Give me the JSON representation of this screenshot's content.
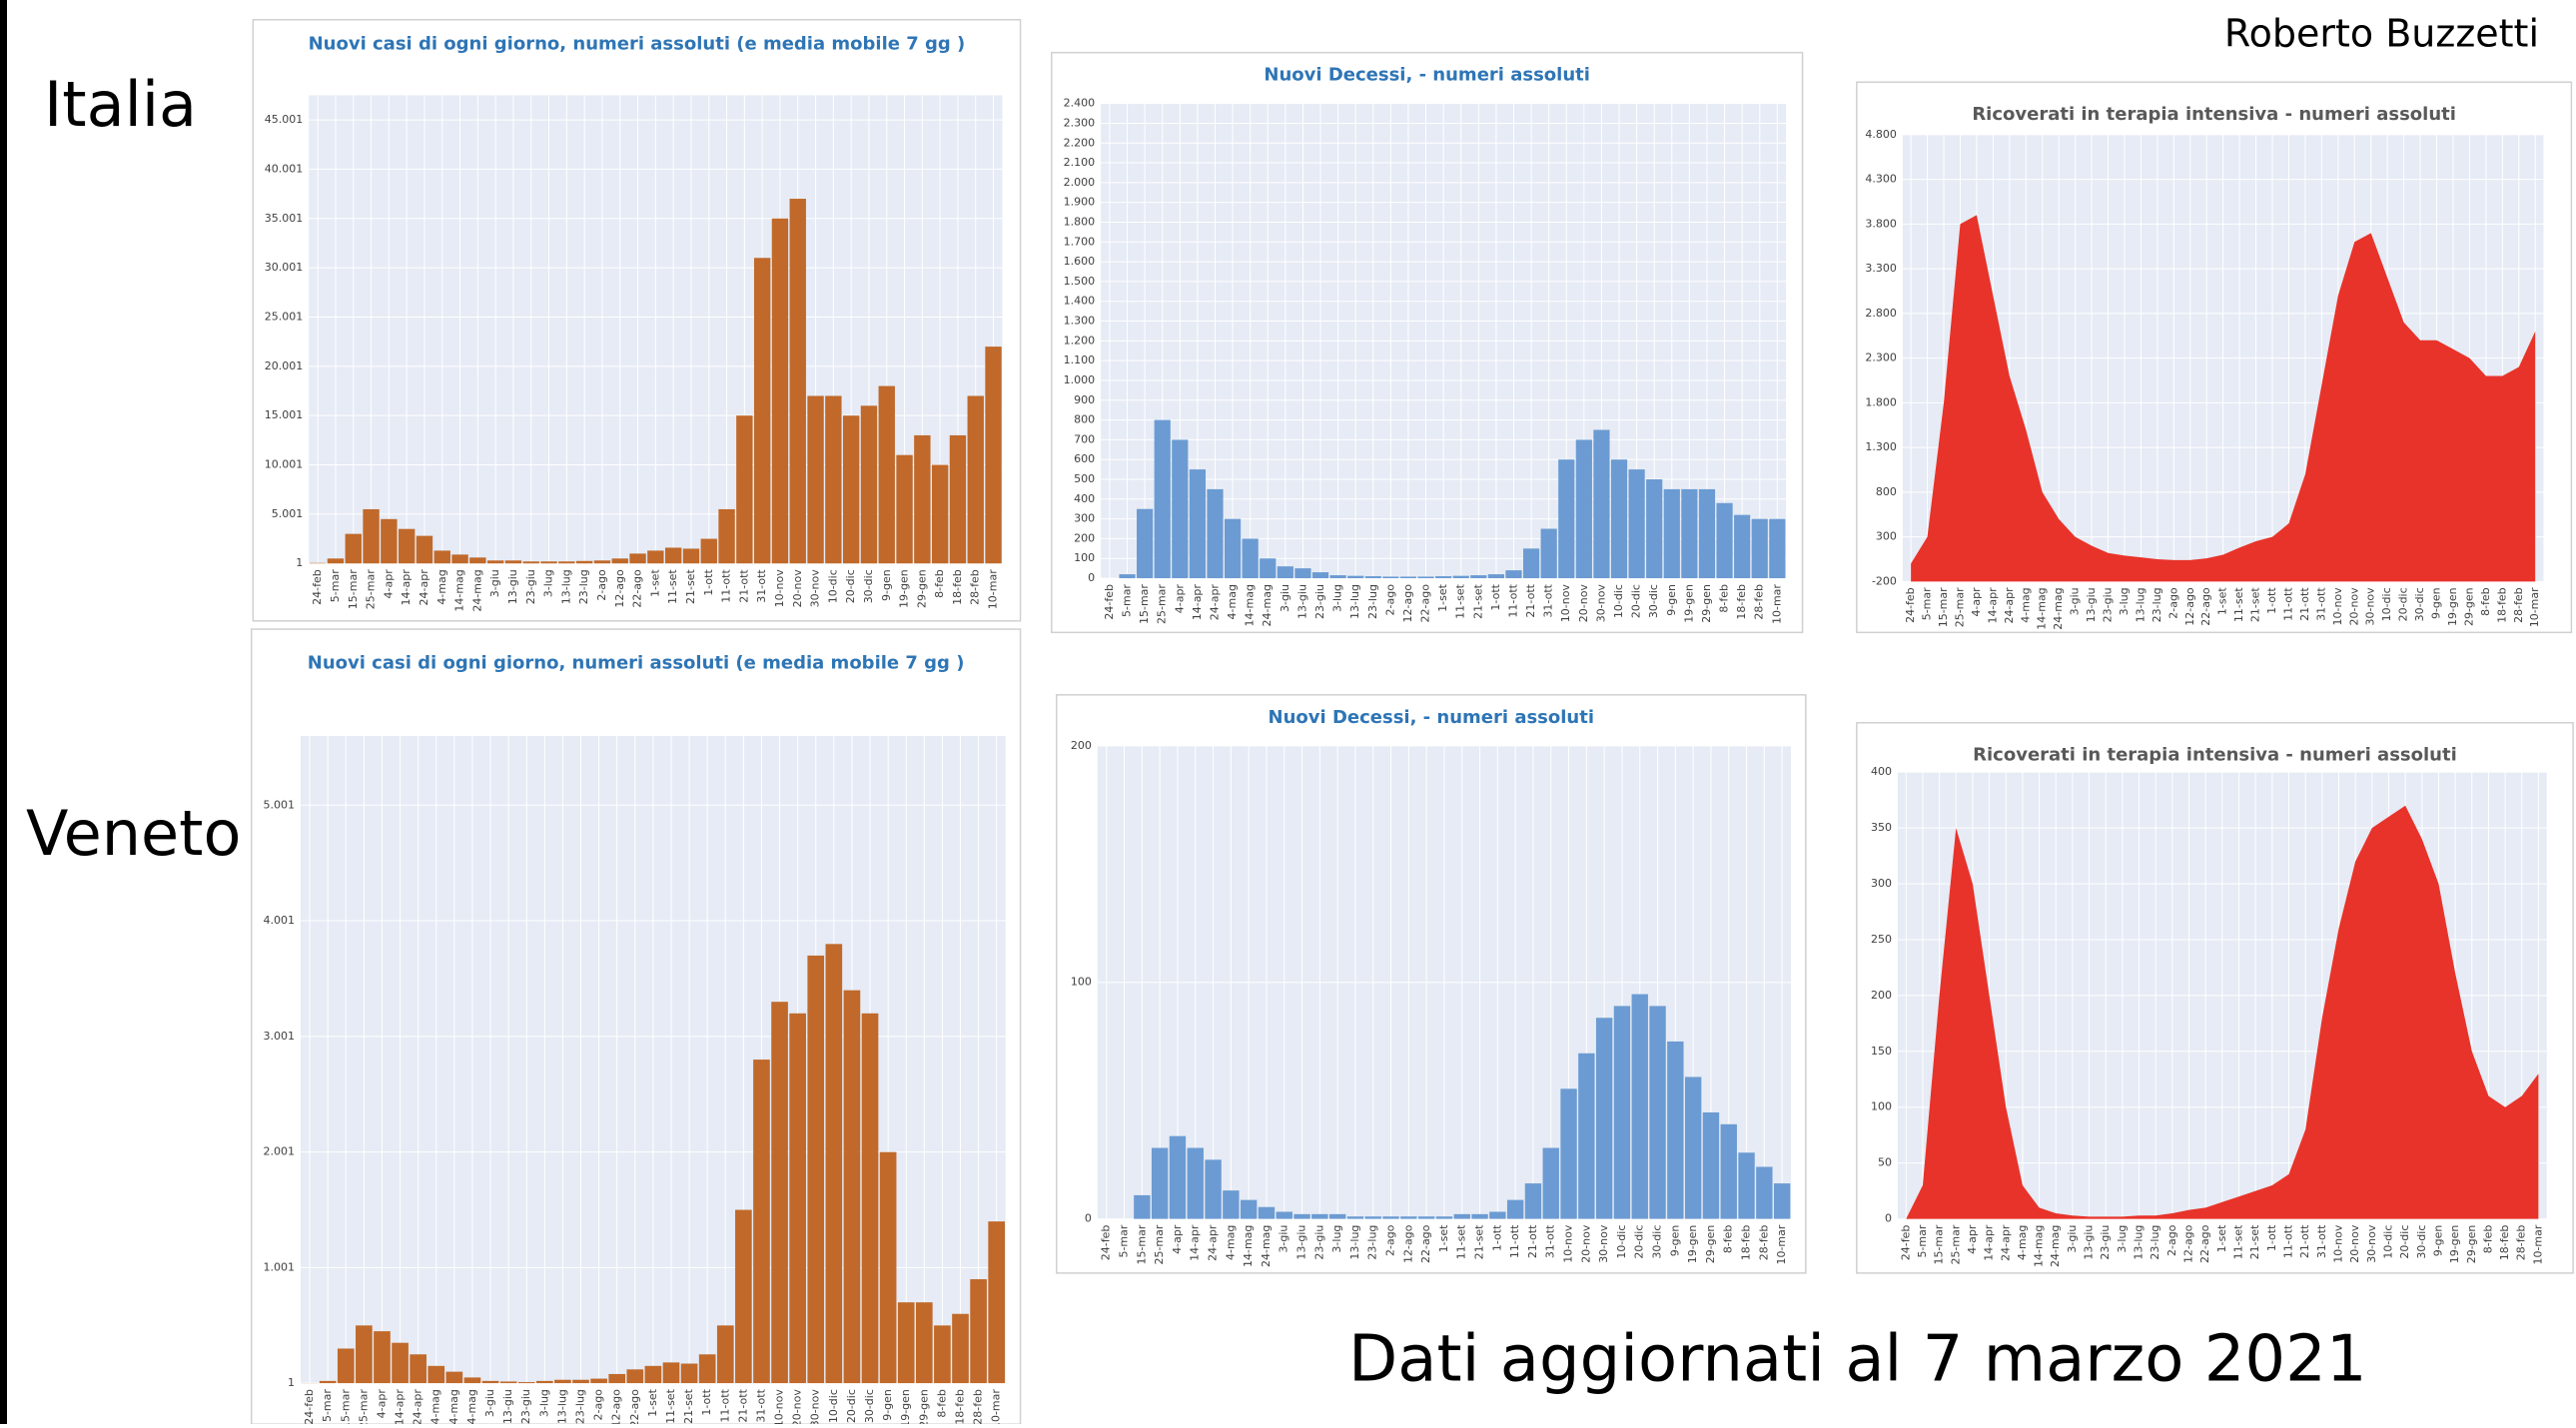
{
  "header": {
    "author": "Roberto Buzzetti",
    "footer": "Dati aggiornati al 7 marzo 2021",
    "regions": [
      "Italia",
      "Veneto"
    ]
  },
  "chart_data": [
    {
      "type": "bar",
      "title": "Nuovi casi di ogni giorno, numeri assoluti (e media mobile 7 gg )",
      "color": "#c0692a",
      "grid": true,
      "categories": [
        "24-feb",
        "5-mar",
        "15-mar",
        "25-mar",
        "4-apr",
        "14-apr",
        "24-apr",
        "4-mag",
        "14-mag",
        "24-mag",
        "3-giu",
        "13-giu",
        "23-giu",
        "3-lug",
        "13-lug",
        "23-lug",
        "2-ago",
        "12-ago",
        "22-ago",
        "1-set",
        "11-set",
        "21-set",
        "1-ott",
        "11-ott",
        "21-ott",
        "31-ott",
        "10-nov",
        "20-nov",
        "30-nov",
        "10-dic",
        "20-dic",
        "30-dic",
        "9-gen",
        "19-gen",
        "29-gen",
        "8-feb",
        "18-feb",
        "28-feb",
        "10-mar"
      ],
      "values": [
        50,
        500,
        3000,
        5500,
        4500,
        3500,
        2800,
        1300,
        900,
        600,
        300,
        300,
        200,
        200,
        200,
        250,
        300,
        500,
        1000,
        1300,
        1600,
        1500,
        2500,
        5500,
        15000,
        31000,
        35000,
        37000,
        17000,
        17000,
        15000,
        16000,
        18000,
        11000,
        13000,
        10000,
        13000,
        17000,
        22000
      ],
      "ylim": [
        1,
        47500
      ],
      "yticks": [
        1,
        {
          "value": 5001,
          "label": "5.001"
        },
        {
          "value": 10001,
          "label": "10.001"
        },
        {
          "value": 15001,
          "label": "15.001"
        },
        {
          "value": 20001,
          "label": "20.001"
        },
        {
          "value": 25001,
          "label": "25.001"
        },
        {
          "value": 30001,
          "label": "30.001"
        },
        {
          "value": 35001,
          "label": "35.001"
        },
        {
          "value": 40001,
          "label": "40.001"
        },
        {
          "value": 45001,
          "label": "45.001"
        }
      ]
    },
    {
      "type": "bar",
      "title": "Nuovi Decessi, - numeri assoluti",
      "color": "#6b9bd2",
      "grid": true,
      "categories": [
        "24-feb",
        "5-mar",
        "15-mar",
        "25-mar",
        "4-apr",
        "14-apr",
        "24-apr",
        "4-mag",
        "14-mag",
        "24-mag",
        "3-giu",
        "13-giu",
        "23-giu",
        "3-lug",
        "13-lug",
        "23-lug",
        "2-ago",
        "12-ago",
        "22-ago",
        "1-set",
        "11-set",
        "21-set",
        "1-ott",
        "11-ott",
        "21-ott",
        "31-ott",
        "10-nov",
        "20-nov",
        "30-nov",
        "10-dic",
        "20-dic",
        "30-dic",
        "9-gen",
        "19-gen",
        "29-gen",
        "8-feb",
        "18-feb",
        "28-feb",
        "10-mar"
      ],
      "values": [
        0,
        20,
        350,
        800,
        700,
        550,
        450,
        300,
        200,
        100,
        60,
        50,
        30,
        15,
        12,
        10,
        8,
        8,
        8,
        10,
        12,
        15,
        20,
        40,
        150,
        250,
        600,
        700,
        750,
        600,
        550,
        500,
        450,
        450,
        450,
        380,
        320,
        300,
        300
      ],
      "ylim": [
        0,
        2400
      ],
      "yticks": [
        0,
        100,
        200,
        300,
        400,
        500,
        600,
        700,
        800,
        900,
        {
          "value": 1000,
          "label": "1.000"
        },
        {
          "value": 1100,
          "label": "1.100"
        },
        {
          "value": 1200,
          "label": "1.200"
        },
        {
          "value": 1300,
          "label": "1.300"
        },
        {
          "value": 1400,
          "label": "1.400"
        },
        {
          "value": 1500,
          "label": "1.500"
        },
        {
          "value": 1600,
          "label": "1.600"
        },
        {
          "value": 1700,
          "label": "1.700"
        },
        {
          "value": 1800,
          "label": "1.800"
        },
        {
          "value": 1900,
          "label": "1.900"
        },
        {
          "value": 2000,
          "label": "2.000"
        },
        {
          "value": 2100,
          "label": "2.100"
        },
        {
          "value": 2200,
          "label": "2.200"
        },
        {
          "value": 2300,
          "label": "2.300"
        },
        {
          "value": 2400,
          "label": "2.400"
        }
      ]
    },
    {
      "type": "area",
      "title": "Ricoverati in terapia intensiva - numeri assoluti",
      "color": "#e8332a",
      "grid": true,
      "categories": [
        "24-feb",
        "5-mar",
        "15-mar",
        "25-mar",
        "4-apr",
        "14-apr",
        "24-apr",
        "4-mag",
        "14-mag",
        "24-mag",
        "3-giu",
        "13-giu",
        "23-giu",
        "3-lug",
        "13-lug",
        "23-lug",
        "2-ago",
        "12-ago",
        "22-ago",
        "1-set",
        "11-set",
        "21-set",
        "1-ott",
        "11-ott",
        "21-ott",
        "31-ott",
        "10-nov",
        "20-nov",
        "30-nov",
        "10-dic",
        "20-dic",
        "30-dic",
        "9-gen",
        "19-gen",
        "29-gen",
        "8-feb",
        "18-feb",
        "28-feb",
        "10-mar"
      ],
      "values": [
        0,
        300,
        1800,
        3800,
        3900,
        3000,
        2100,
        1500,
        800,
        500,
        300,
        200,
        120,
        90,
        70,
        50,
        40,
        40,
        60,
        100,
        180,
        250,
        300,
        450,
        1000,
        2000,
        3000,
        3600,
        3700,
        3200,
        2700,
        2500,
        2500,
        2400,
        2300,
        2100,
        2100,
        2200,
        2600
      ],
      "ylim": [
        -200,
        4800
      ],
      "yticks": [
        -200,
        300,
        800,
        {
          "value": 1300,
          "label": "1.300"
        },
        {
          "value": 1800,
          "label": "1.800"
        },
        {
          "value": 2300,
          "label": "2.300"
        },
        {
          "value": 2800,
          "label": "2.800"
        },
        {
          "value": 3300,
          "label": "3.300"
        },
        {
          "value": 3800,
          "label": "3.800"
        },
        {
          "value": 4300,
          "label": "4.300"
        },
        {
          "value": 4800,
          "label": "4.800"
        }
      ]
    },
    {
      "type": "bar",
      "title": "Nuovi casi di ogni giorno, numeri assoluti (e media mobile 7 gg )",
      "color": "#c0692a",
      "grid": true,
      "categories": [
        "24-feb",
        "5-mar",
        "15-mar",
        "25-mar",
        "4-apr",
        "14-apr",
        "24-apr",
        "4-mag",
        "14-mag",
        "24-mag",
        "3-giu",
        "13-giu",
        "23-giu",
        "3-lug",
        "13-lug",
        "23-lug",
        "2-ago",
        "12-ago",
        "22-ago",
        "1-set",
        "11-set",
        "21-set",
        "1-ott",
        "11-ott",
        "21-ott",
        "31-ott",
        "10-nov",
        "20-nov",
        "30-nov",
        "10-dic",
        "20-dic",
        "30-dic",
        "9-gen",
        "19-gen",
        "29-gen",
        "8-feb",
        "18-feb",
        "28-feb",
        "10-mar"
      ],
      "values": [
        0,
        20,
        300,
        500,
        450,
        350,
        250,
        150,
        100,
        50,
        20,
        15,
        10,
        20,
        30,
        30,
        40,
        80,
        120,
        150,
        180,
        170,
        250,
        500,
        1500,
        2800,
        3300,
        3200,
        3700,
        3800,
        3400,
        3200,
        2000,
        700,
        700,
        500,
        600,
        900,
        1400
      ],
      "ylim": [
        1,
        5600
      ],
      "yticks": [
        1,
        {
          "value": 1001,
          "label": "1.001"
        },
        {
          "value": 2001,
          "label": "2.001"
        },
        {
          "value": 3001,
          "label": "3.001"
        },
        {
          "value": 4001,
          "label": "4.001"
        },
        {
          "value": 5001,
          "label": "5.001"
        }
      ]
    },
    {
      "type": "bar",
      "title": "Nuovi Decessi, - numeri assoluti",
      "color": "#6b9bd2",
      "grid": true,
      "categories": [
        "24-feb",
        "5-mar",
        "15-mar",
        "25-mar",
        "4-apr",
        "14-apr",
        "24-apr",
        "4-mag",
        "14-mag",
        "24-mag",
        "3-giu",
        "13-giu",
        "23-giu",
        "3-lug",
        "13-lug",
        "23-lug",
        "2-ago",
        "12-ago",
        "22-ago",
        "1-set",
        "11-set",
        "21-set",
        "1-ott",
        "11-ott",
        "21-ott",
        "31-ott",
        "10-nov",
        "20-nov",
        "30-nov",
        "10-dic",
        "20-dic",
        "30-dic",
        "9-gen",
        "19-gen",
        "29-gen",
        "8-feb",
        "18-feb",
        "28-feb",
        "10-mar"
      ],
      "values": [
        0,
        0,
        10,
        30,
        35,
        30,
        25,
        12,
        8,
        5,
        3,
        2,
        2,
        2,
        1,
        1,
        1,
        1,
        1,
        1,
        2,
        2,
        3,
        8,
        15,
        30,
        55,
        70,
        85,
        90,
        95,
        90,
        75,
        60,
        45,
        40,
        28,
        22,
        15
      ],
      "ylim": [
        0,
        200
      ],
      "yticks": [
        0,
        100,
        200
      ]
    },
    {
      "type": "area",
      "title": "Ricoverati in terapia intensiva - numeri assoluti",
      "color": "#e8332a",
      "grid": true,
      "categories": [
        "24-feb",
        "5-mar",
        "15-mar",
        "25-mar",
        "4-apr",
        "14-apr",
        "24-apr",
        "4-mag",
        "14-mag",
        "24-mag",
        "3-giu",
        "13-giu",
        "23-giu",
        "3-lug",
        "13-lug",
        "23-lug",
        "2-ago",
        "12-ago",
        "22-ago",
        "1-set",
        "11-set",
        "21-set",
        "1-ott",
        "11-ott",
        "21-ott",
        "31-ott",
        "10-nov",
        "20-nov",
        "30-nov",
        "10-dic",
        "20-dic",
        "30-dic",
        "9-gen",
        "19-gen",
        "29-gen",
        "8-feb",
        "18-feb",
        "28-feb",
        "10-mar"
      ],
      "values": [
        0,
        30,
        200,
        350,
        300,
        200,
        100,
        30,
        10,
        5,
        3,
        2,
        2,
        2,
        3,
        3,
        5,
        8,
        10,
        15,
        20,
        25,
        30,
        40,
        80,
        180,
        260,
        320,
        350,
        360,
        370,
        340,
        300,
        220,
        150,
        110,
        100,
        110,
        130
      ],
      "ylim": [
        0,
        400
      ],
      "yticks": [
        0,
        50,
        100,
        150,
        200,
        250,
        300,
        350,
        400
      ]
    }
  ]
}
